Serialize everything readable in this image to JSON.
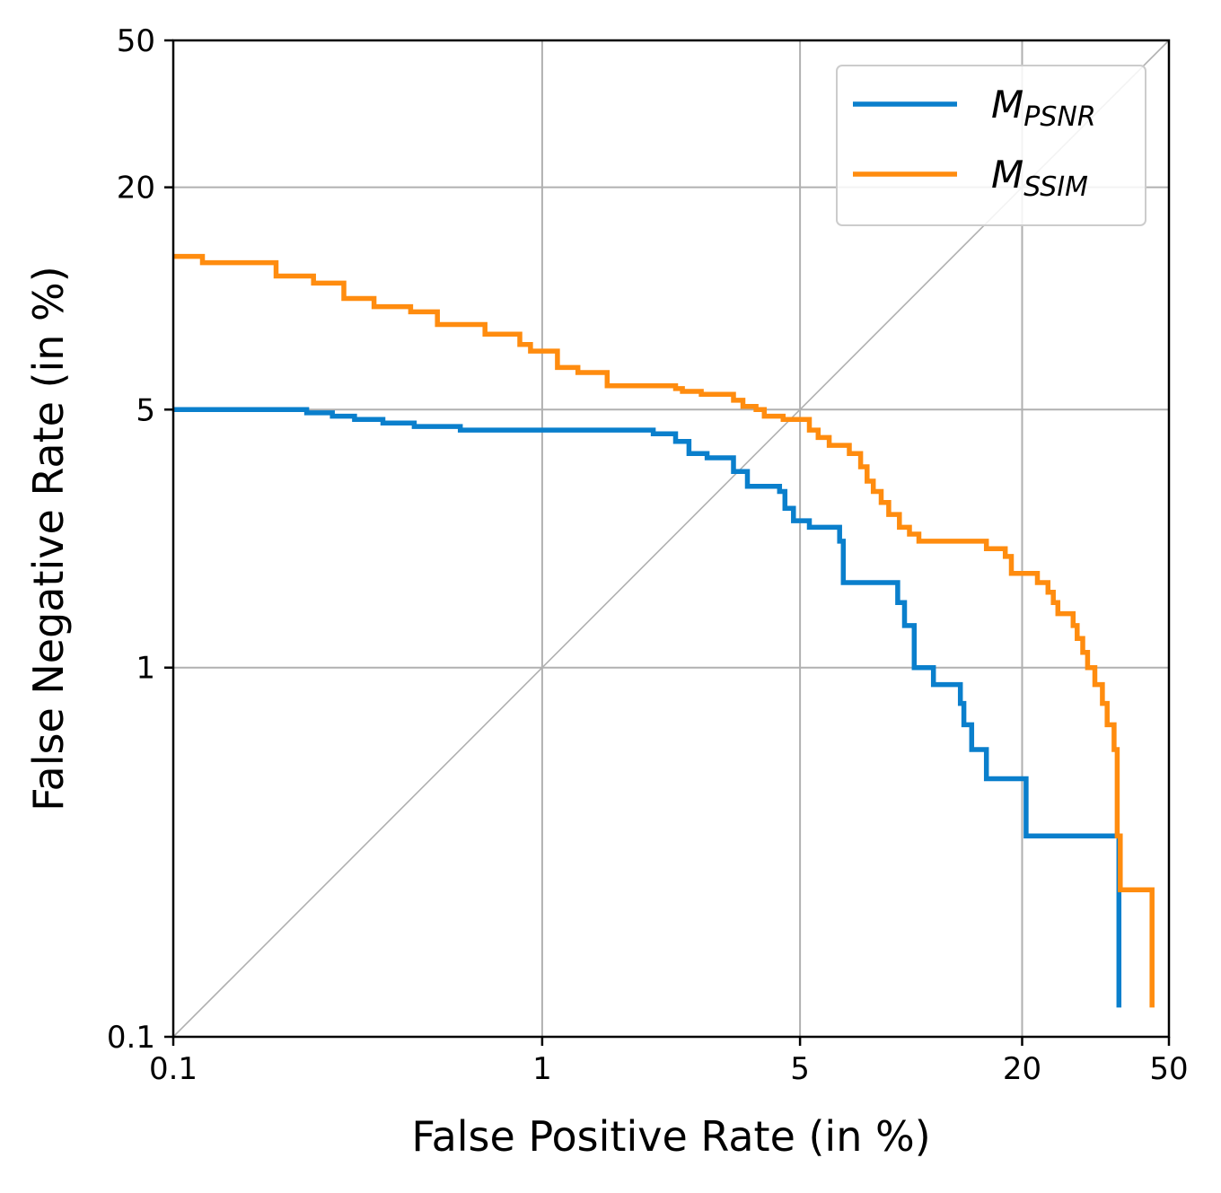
{
  "chart_data": {
    "type": "line",
    "xscale": "log",
    "yscale": "log",
    "xlabel": "False Positive Rate (in %)",
    "ylabel": "False Negative Rate (in %)",
    "xlim": [
      0.1,
      50
    ],
    "ylim": [
      0.1,
      50
    ],
    "xticks": [
      0.1,
      1,
      5,
      20,
      50
    ],
    "yticks": [
      0.1,
      1,
      5,
      20,
      50
    ],
    "xtick_labels": [
      "0.1",
      "1",
      "5",
      "20",
      "50"
    ],
    "ytick_labels": [
      "0.1",
      "1",
      "5",
      "20",
      "50"
    ],
    "grid": true,
    "legend_position": "top-right",
    "reference_line": "diagonal y = x",
    "series": [
      {
        "name": "M_PSNR",
        "legend_main": "M",
        "legend_sub": "PSNR",
        "color": "#0a7fcc",
        "x": [
          0.1,
          0.23,
          0.27,
          0.31,
          0.37,
          0.45,
          0.6,
          2.0,
          2.3,
          2.5,
          2.8,
          3.3,
          3.6,
          4.4,
          4.55,
          4.8,
          5.3,
          6.4,
          6.55,
          9.2,
          9.6,
          10.2,
          11.5,
          13.6,
          13.9,
          14.6,
          16.0,
          19.2,
          20.5,
          35.5,
          36.6
        ],
        "y": [
          5.0,
          4.9,
          4.8,
          4.7,
          4.6,
          4.5,
          4.4,
          4.3,
          4.1,
          3.8,
          3.7,
          3.4,
          3.1,
          3.0,
          2.7,
          2.5,
          2.4,
          2.2,
          1.7,
          1.5,
          1.3,
          1.0,
          0.9,
          0.8,
          0.7,
          0.6,
          0.5,
          0.5,
          0.35,
          0.35,
          0.12
        ]
      },
      {
        "name": "M_SSIM",
        "legend_main": "M",
        "legend_sub": "SSIM",
        "color": "#ff8c0f",
        "x": [
          0.1,
          0.12,
          0.19,
          0.24,
          0.29,
          0.35,
          0.44,
          0.52,
          0.7,
          0.87,
          0.93,
          1.1,
          1.25,
          1.5,
          2.3,
          2.4,
          2.7,
          3.3,
          3.5,
          3.8,
          4.0,
          4.5,
          5.3,
          5.6,
          6.0,
          6.8,
          7.3,
          7.6,
          7.9,
          8.3,
          8.7,
          9.3,
          9.9,
          10.5,
          16.0,
          18.0,
          18.7,
          22.0,
          23.5,
          24.3,
          25.0,
          27.5,
          28.2,
          29.2,
          30.1,
          31.5,
          33.0,
          34.0,
          35.5,
          36.2,
          36.9,
          45.0
        ],
        "y": [
          13.0,
          12.5,
          11.5,
          11.0,
          10.0,
          9.5,
          9.2,
          8.5,
          8.0,
          7.5,
          7.2,
          6.5,
          6.3,
          5.8,
          5.7,
          5.6,
          5.5,
          5.3,
          5.1,
          5.0,
          4.8,
          4.7,
          4.4,
          4.2,
          4.0,
          3.8,
          3.5,
          3.2,
          3.0,
          2.8,
          2.6,
          2.4,
          2.3,
          2.2,
          2.1,
          2.0,
          1.8,
          1.7,
          1.6,
          1.5,
          1.4,
          1.3,
          1.2,
          1.1,
          1.0,
          0.9,
          0.8,
          0.7,
          0.6,
          0.35,
          0.25,
          0.12
        ]
      }
    ]
  }
}
